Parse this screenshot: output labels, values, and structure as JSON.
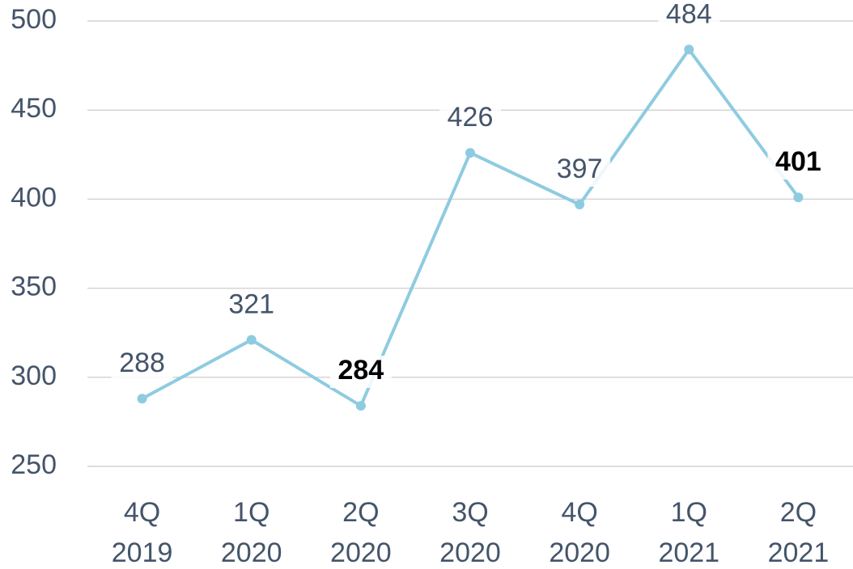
{
  "chart_data": {
    "type": "line",
    "categories": [
      [
        "4Q",
        "2019"
      ],
      [
        "1Q",
        "2020"
      ],
      [
        "2Q",
        "2020"
      ],
      [
        "3Q",
        "2020"
      ],
      [
        "4Q",
        "2020"
      ],
      [
        "1Q",
        "2021"
      ],
      [
        "2Q",
        "2021"
      ]
    ],
    "values": [
      288,
      321,
      284,
      426,
      397,
      484,
      401
    ],
    "value_label_bold": [
      false,
      false,
      true,
      false,
      false,
      false,
      true
    ],
    "color": "#8ecbe0",
    "ylim": [
      250,
      500
    ],
    "yticks": [
      250,
      300,
      350,
      400,
      450,
      500
    ],
    "grid": true
  }
}
